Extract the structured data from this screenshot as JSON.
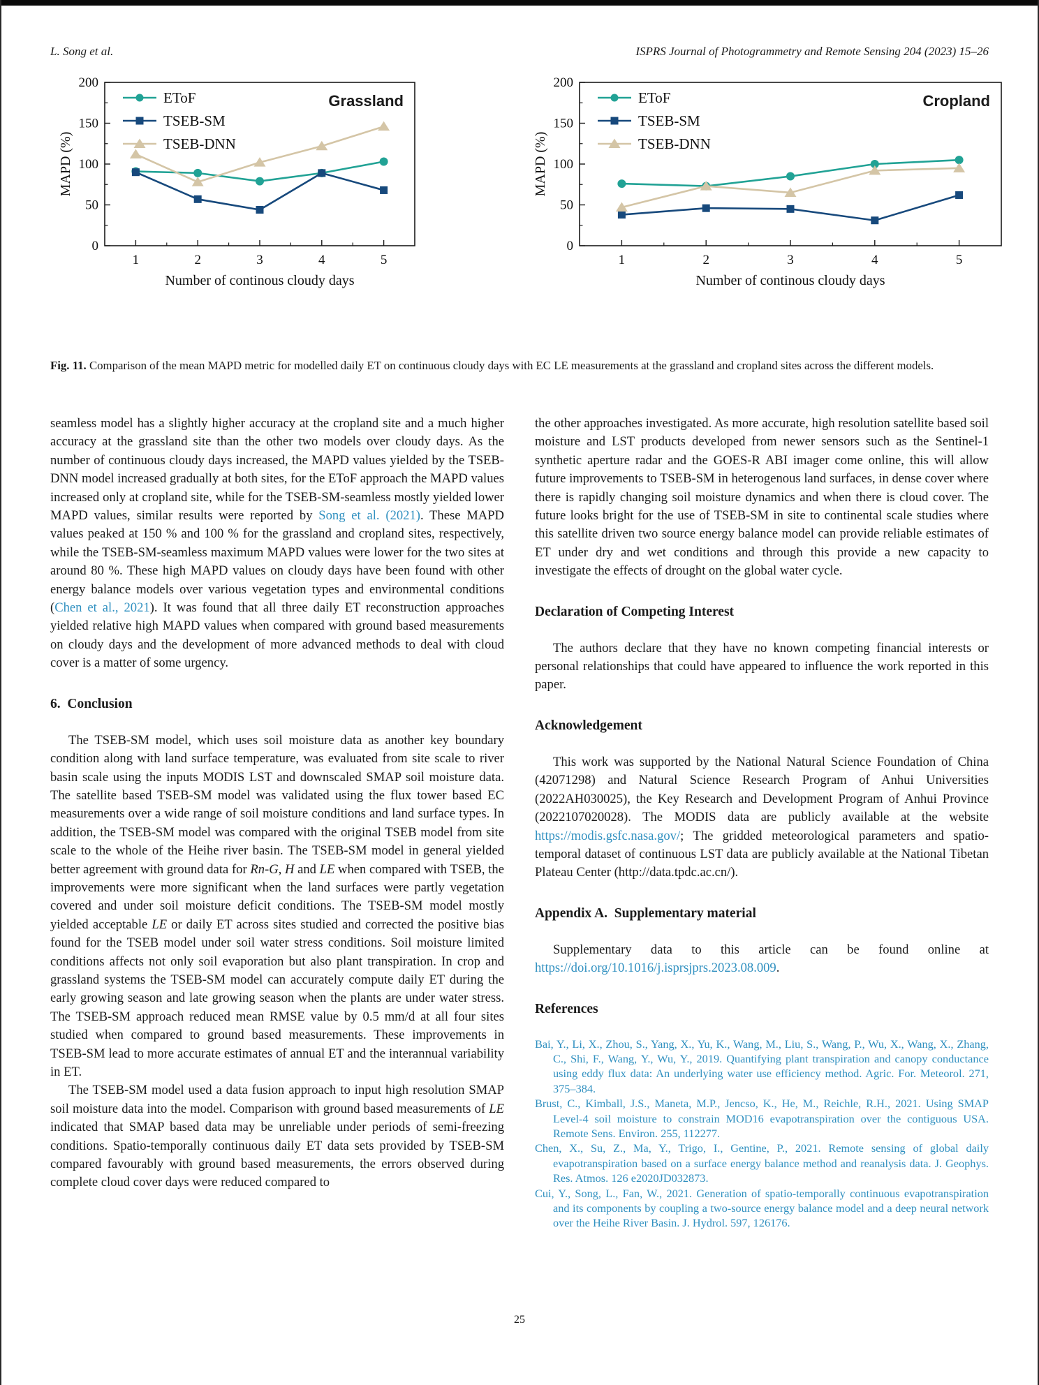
{
  "page": {
    "header_left": "L. Song et al.",
    "header_right": "ISPRS Journal of Photogrammetry and Remote Sensing 204 (2023) 15–26",
    "page_number": "25"
  },
  "figure": {
    "caption_label": "Fig. 11.",
    "caption_text": " Comparison of the mean MAPD metric for modelled daily ET on continuous cloudy days with EC LE measurements at the grassland and cropland sites across the different models."
  },
  "chart_data": [
    {
      "type": "line",
      "title": "Grassland",
      "x": [
        1,
        2,
        3,
        4,
        5
      ],
      "xlabel": "Number of continous cloudy days",
      "ylabel": "MAPD (%)",
      "ylim": [
        0,
        200
      ],
      "yticks": [
        0,
        50,
        100,
        150,
        200
      ],
      "grid": false,
      "legend_position": "top-left",
      "series": [
        {
          "name": "EToF",
          "color": "#21a295",
          "marker": "circle",
          "values": [
            91,
            89,
            79,
            89,
            103
          ]
        },
        {
          "name": "TSEB-SM",
          "color": "#17497c",
          "marker": "square",
          "values": [
            90,
            57,
            44,
            89,
            68
          ]
        },
        {
          "name": "TSEB-DNN",
          "color": "#d4c5a6",
          "marker": "triangle",
          "values": [
            112,
            78,
            102,
            122,
            146
          ]
        }
      ]
    },
    {
      "type": "line",
      "title": "Cropland",
      "x": [
        1,
        2,
        3,
        4,
        5
      ],
      "xlabel": "Number of continous cloudy days",
      "ylabel": "MAPD (%)",
      "ylim": [
        0,
        200
      ],
      "yticks": [
        0,
        50,
        100,
        150,
        200
      ],
      "grid": false,
      "legend_position": "top-left",
      "series": [
        {
          "name": "EToF",
          "color": "#21a295",
          "marker": "circle",
          "values": [
            76,
            73,
            85,
            100,
            105
          ]
        },
        {
          "name": "TSEB-SM",
          "color": "#17497c",
          "marker": "square",
          "values": [
            38,
            46,
            45,
            31,
            62
          ]
        },
        {
          "name": "TSEB-DNN",
          "color": "#d4c5a6",
          "marker": "triangle",
          "values": [
            47,
            73,
            65,
            92,
            95
          ]
        }
      ]
    }
  ],
  "article": {
    "left_col": [
      {
        "kind": "p",
        "indent": false,
        "segments": [
          {
            "t": "seamless model has a slightly higher accuracy at the cropland site and a much higher accuracy at the grassland site than the other two models over cloudy days. As the number of continuous cloudy days increased, the MAPD values yielded by the TSEB-DNN model increased gradually at both sites, for the EToF approach the MAPD values increased only at cropland site, while for the TSEB-SM-seamless mostly yielded lower MAPD values, similar results were reported by "
          },
          {
            "t": "Song et al. (2021)",
            "s": "link"
          },
          {
            "t": ". These MAPD values peaked at 150 % and 100 % for the grassland and cropland sites, respectively, while the TSEB-SM-seamless maximum MAPD values were lower for the two sites at around 80 %. These high MAPD values on cloudy days have been found with other energy balance models over various vegetation types and environmental conditions ("
          },
          {
            "t": "Chen et al., 2021",
            "s": "link"
          },
          {
            "t": "). It was found that all three daily ET reconstruction approaches yielded relative high MAPD values when compared with ground based measurements on cloudy days and the development of more advanced methods to deal with cloud cover is a matter of some urgency."
          }
        ]
      },
      {
        "kind": "h2",
        "text": "6.  Conclusion"
      },
      {
        "kind": "p",
        "indent": true,
        "segments": [
          {
            "t": "The TSEB-SM model, which uses soil moisture data as another key boundary condition along with land surface temperature, was evaluated from site scale to river basin scale using the inputs MODIS LST and downscaled SMAP soil moisture data. The satellite based TSEB-SM model was validated using the flux tower based EC measurements over a wide range of soil moisture conditions and land surface types. In addition, the TSEB-SM model was compared with the original TSEB model from site scale to the whole of the Heihe river basin. The TSEB-SM model in general yielded better agreement with ground data for "
          },
          {
            "t": "Rn-G, H",
            "s": "i"
          },
          {
            "t": " and "
          },
          {
            "t": "LE",
            "s": "i"
          },
          {
            "t": " when compared with TSEB, the improvements were more significant when the land surfaces were partly vegetation covered and under soil moisture deficit conditions. The TSEB-SM model mostly yielded acceptable "
          },
          {
            "t": "LE",
            "s": "i"
          },
          {
            "t": " or daily ET across sites studied and corrected the positive bias found for the TSEB model under soil water stress conditions. Soil moisture limited conditions affects not only soil evaporation but also plant transpiration. In crop and grassland systems the TSEB-SM model can accurately compute daily ET during the early growing season and late growing season when the plants are under water stress. The TSEB-SM approach reduced mean RMSE value by 0.5 mm/d at all four sites studied when compared to ground based measurements. These improvements in TSEB-SM lead to more accurate estimates of annual ET and the interannual variability in ET."
          }
        ]
      },
      {
        "kind": "p",
        "indent": true,
        "segments": [
          {
            "t": "The TSEB-SM model used a data fusion approach to input high resolution SMAP soil moisture data into the model. Comparison with ground based measurements of "
          },
          {
            "t": "LE",
            "s": "i"
          },
          {
            "t": " indicated that SMAP based data may be unreliable under periods of semi-freezing conditions. Spatio-temporally continuous daily ET data sets provided by TSEB-SM compared favourably with ground based measurements, the errors observed during complete cloud cover days were reduced compared to"
          }
        ]
      }
    ],
    "right_col": [
      {
        "kind": "p",
        "indent": false,
        "segments": [
          {
            "t": "the other approaches investigated. As more accurate, high resolution satellite based soil moisture and LST products developed from newer sensors such as the Sentinel-1 synthetic aperture radar and the GOES-R ABI imager come online, this will allow future improvements to TSEB-SM in heterogenous land surfaces, in dense cover where there is rapidly changing soil moisture dynamics and when there is cloud cover. The future looks bright for the use of TSEB-SM in site to continental scale studies where this satellite driven two source energy balance model can provide reliable estimates of ET under dry and wet conditions and through this provide a new capacity to investigate the effects of drought on the global water cycle."
          }
        ]
      },
      {
        "kind": "h2",
        "text": "Declaration of Competing Interest"
      },
      {
        "kind": "p",
        "indent": true,
        "segments": [
          {
            "t": "The authors declare that they have no known competing financial interests or personal relationships that could have appeared to influence the work reported in this paper."
          }
        ]
      },
      {
        "kind": "h2",
        "text": "Acknowledgement"
      },
      {
        "kind": "p",
        "indent": true,
        "segments": [
          {
            "t": "This work was supported by the National Natural Science Foundation of China (42071298) and Natural Science Research Program of Anhui Universities (2022AH030025), the Key Research and Development Program of Anhui Province (2022107020028). The MODIS data are publicly available at the website "
          },
          {
            "t": "https://modis.gsfc.nasa.gov/",
            "s": "link"
          },
          {
            "t": "; The gridded meteorological parameters and spatio-temporal dataset of continuous LST data are publicly available at the National Tibetan Plateau Center (http://data.tpdc.ac.cn/)."
          }
        ]
      },
      {
        "kind": "h2",
        "text": "Appendix A.  Supplementary material"
      },
      {
        "kind": "p",
        "indent": true,
        "segments": [
          {
            "t": "Supplementary data to this article can be found online at "
          },
          {
            "t": "https://doi.org/10.1016/j.isprsjprs.2023.08.009",
            "s": "link"
          },
          {
            "t": "."
          }
        ]
      },
      {
        "kind": "h2",
        "text": "References"
      },
      {
        "kind": "ref",
        "segments": [
          {
            "t": "Bai, Y., Li, X., Zhou, S., Yang, X., Yu, K., Wang, M., Liu, S., Wang, P., Wu, X., Wang, X., Zhang, C., Shi, F., Wang, Y., Wu, Y., 2019. Quantifying plant transpiration and canopy conductance using eddy flux data: An underlying water use efficiency method. Agric. For. Meteorol. 271, 375–384."
          }
        ]
      },
      {
        "kind": "ref",
        "segments": [
          {
            "t": "Brust, C., Kimball, J.S., Maneta, M.P., Jencso, K., He, M., Reichle, R.H., 2021. Using SMAP Level-4 soil moisture to constrain MOD16 evapotranspiration over the contiguous USA. Remote Sens. Environ. 255, 112277."
          }
        ]
      },
      {
        "kind": "ref",
        "segments": [
          {
            "t": "Chen, X., Su, Z., Ma, Y., Trigo, I., Gentine, P., 2021. Remote sensing of global daily evapotranspiration based on a surface energy balance method and reanalysis data. J. Geophys. Res. Atmos. 126 e2020JD032873."
          }
        ]
      },
      {
        "kind": "ref",
        "segments": [
          {
            "t": "Cui, Y., Song, L., Fan, W., 2021. Generation of spatio-temporally continuous evapotranspiration and its components by coupling a two-source energy balance model and a deep neural network over the Heihe River Basin. J. Hydrol. 597, 126176."
          }
        ]
      }
    ]
  }
}
